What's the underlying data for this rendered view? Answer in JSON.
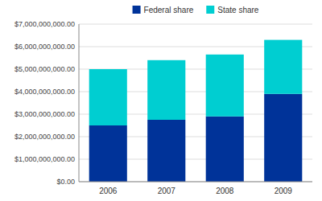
{
  "chart_data": {
    "type": "bar",
    "stacked": true,
    "categories": [
      "2006",
      "2007",
      "2008",
      "2009"
    ],
    "series": [
      {
        "name": "Federal share",
        "color": "#003399",
        "values": [
          2500000000,
          2750000000,
          2900000000,
          3900000000
        ]
      },
      {
        "name": "State share",
        "color": "#00CED1",
        "values": [
          2500000000,
          2650000000,
          2750000000,
          2400000000
        ]
      }
    ],
    "ylim": [
      0,
      7000000000
    ],
    "yticks": [
      {
        "value": 0,
        "label": "$0.00"
      },
      {
        "value": 1000000000,
        "label": "$1,000,000,000.00"
      },
      {
        "value": 2000000000,
        "label": "$2,000,000,000.00"
      },
      {
        "value": 3000000000,
        "label": "$3,000,000,000.00"
      },
      {
        "value": 4000000000,
        "label": "$4,000,000,000.00"
      },
      {
        "value": 5000000000,
        "label": "$5,000,000,000.00"
      },
      {
        "value": 6000000000,
        "label": "$6,000,000,000.00"
      },
      {
        "value": 7000000000,
        "label": "$7,000,000,000.00"
      }
    ],
    "grid": true,
    "legend": "upper center"
  }
}
